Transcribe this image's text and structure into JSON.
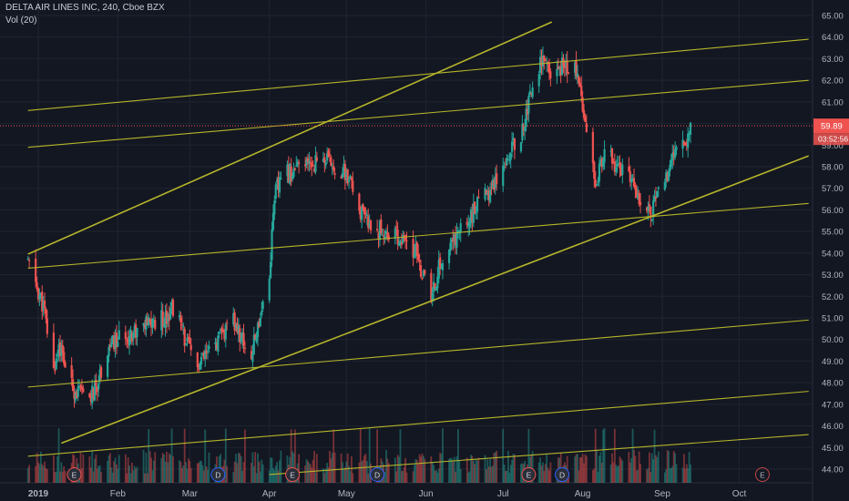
{
  "header": {
    "symbol_line": "DELTA AIR LINES INC, 240, Cboe BZX",
    "volume_label": "Vol (20)"
  },
  "colors": {
    "background": "#131722",
    "grid": "#1f2431",
    "up": "#26a69a",
    "down": "#ef5350",
    "trendline": "#b5b52a",
    "axis_text": "#b2b5be",
    "last_price_bg": "#ef5350"
  },
  "last_price": {
    "label": "59.89",
    "countdown": "03:52:56"
  },
  "chart_data": {
    "type": "candlestick",
    "title": "DELTA AIR LINES INC, 240, Cboe BZX",
    "x_ticks": [
      "2019",
      "Feb",
      "Mar",
      "Apr",
      "May",
      "Jun",
      "Jul",
      "Aug",
      "Sep",
      "Oct"
    ],
    "y_ticks": [
      "44.00",
      "45.00",
      "46.00",
      "47.00",
      "48.00",
      "49.00",
      "50.00",
      "51.00",
      "52.00",
      "53.00",
      "54.00",
      "55.00",
      "56.00",
      "57.00",
      "58.00",
      "59.00",
      "60.00",
      "61.00",
      "62.00",
      "63.00",
      "64.00",
      "65.00"
    ],
    "y_range": [
      43.6,
      65.4
    ],
    "grid": true,
    "price_path": [
      [
        "2018-12-28",
        53.6
      ],
      [
        "2019-01-03",
        51.5
      ],
      [
        "2019-01-07",
        48.5
      ],
      [
        "2019-01-09",
        49.8
      ],
      [
        "2019-01-14",
        47.8
      ],
      [
        "2019-01-20",
        47.2
      ],
      [
        "2019-01-23",
        47.6
      ],
      [
        "2019-01-28",
        49.6
      ],
      [
        "2019-02-04",
        50.2
      ],
      [
        "2019-02-11",
        50.6
      ],
      [
        "2019-02-19",
        51.0
      ],
      [
        "2019-02-23",
        51.6
      ],
      [
        "2019-02-26",
        50.4
      ],
      [
        "2019-03-01",
        49.5
      ],
      [
        "2019-03-04",
        48.7
      ],
      [
        "2019-03-11",
        49.8
      ],
      [
        "2019-03-18",
        50.8
      ],
      [
        "2019-03-25",
        49.2
      ],
      [
        "2019-03-29",
        51.5
      ],
      [
        "2019-04-01",
        53.0
      ],
      [
        "2019-04-03",
        56.8
      ],
      [
        "2019-04-08",
        57.7
      ],
      [
        "2019-04-15",
        58.0
      ],
      [
        "2019-04-22",
        58.4
      ],
      [
        "2019-05-01",
        57.6
      ],
      [
        "2019-05-08",
        55.5
      ],
      [
        "2019-05-15",
        55.0
      ],
      [
        "2019-05-20",
        54.8
      ],
      [
        "2019-05-28",
        54.0
      ],
      [
        "2019-06-03",
        51.8
      ],
      [
        "2019-06-06",
        53.3
      ],
      [
        "2019-06-13",
        54.8
      ],
      [
        "2019-06-20",
        56.0
      ],
      [
        "2019-06-26",
        57.0
      ],
      [
        "2019-07-01",
        58.2
      ],
      [
        "2019-07-08",
        59.5
      ],
      [
        "2019-07-12",
        61.5
      ],
      [
        "2019-07-16",
        63.0
      ],
      [
        "2019-07-20",
        62.0
      ],
      [
        "2019-07-25",
        62.8
      ],
      [
        "2019-07-29",
        62.5
      ],
      [
        "2019-08-01",
        61.0
      ],
      [
        "2019-08-06",
        57.5
      ],
      [
        "2019-08-10",
        58.5
      ],
      [
        "2019-08-15",
        58.0
      ],
      [
        "2019-08-20",
        57.2
      ],
      [
        "2019-08-26",
        56.2
      ],
      [
        "2019-08-28",
        56.0
      ],
      [
        "2019-09-03",
        57.6
      ],
      [
        "2019-09-06",
        58.5
      ],
      [
        "2019-09-10",
        59.2
      ],
      [
        "2019-09-12",
        59.89
      ]
    ],
    "trendlines": [
      {
        "from": [
          "2018-12-28",
          53.95
        ],
        "to": [
          "2019-07-20",
          64.7
        ]
      },
      {
        "from": [
          "2019-01-10",
          45.2
        ],
        "to": [
          "2019-10-28",
          58.5
        ]
      },
      {
        "from": [
          "2018-12-28",
          60.6
        ],
        "to": [
          "2019-10-28",
          63.9
        ]
      },
      {
        "from": [
          "2018-12-28",
          58.9
        ],
        "to": [
          "2019-10-28",
          62.0
        ]
      },
      {
        "from": [
          "2018-12-28",
          53.3
        ],
        "to": [
          "2019-10-28",
          56.3
        ]
      },
      {
        "from": [
          "2018-12-28",
          47.8
        ],
        "to": [
          "2019-10-28",
          50.9
        ]
      },
      {
        "from": [
          "2018-12-28",
          44.6
        ],
        "to": [
          "2019-10-28",
          47.6
        ]
      },
      {
        "from": [
          "2019-04-01",
          43.75
        ],
        "to": [
          "2019-10-28",
          45.6
        ]
      }
    ],
    "events": [
      {
        "date": "2019-01-15",
        "label": "E"
      },
      {
        "date": "2019-03-12",
        "label": "D"
      },
      {
        "date": "2019-04-10",
        "label": "E"
      },
      {
        "date": "2019-05-13",
        "label": "D"
      },
      {
        "date": "2019-07-11",
        "label": "E"
      },
      {
        "date": "2019-07-24",
        "label": "D"
      },
      {
        "date": "2019-10-10",
        "label": "E"
      }
    ]
  }
}
